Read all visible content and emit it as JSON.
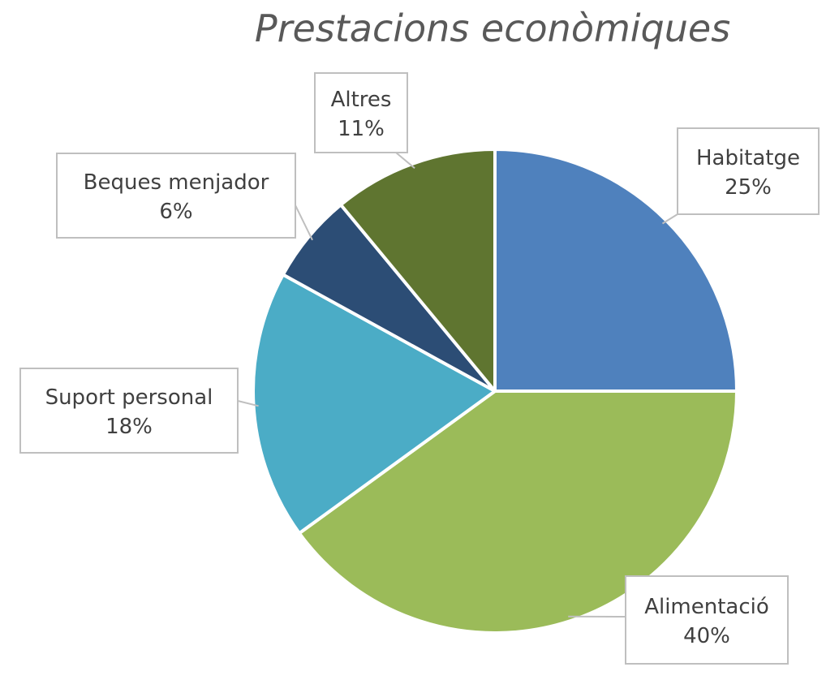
{
  "chart_data": {
    "type": "pie",
    "title": "Prestacions econòmiques",
    "categories": [
      "Habitatge",
      "Alimentació",
      "Suport personal",
      "Beques menjador",
      "Altres"
    ],
    "values": [
      25,
      40,
      18,
      6,
      11
    ],
    "value_labels": [
      "25%",
      "40%",
      "18%",
      "6%",
      "11%"
    ],
    "colors": [
      "#4F81BD",
      "#9BBB59",
      "#4BACC6",
      "#2C4D75",
      "#5F7530"
    ],
    "legend": "none"
  }
}
